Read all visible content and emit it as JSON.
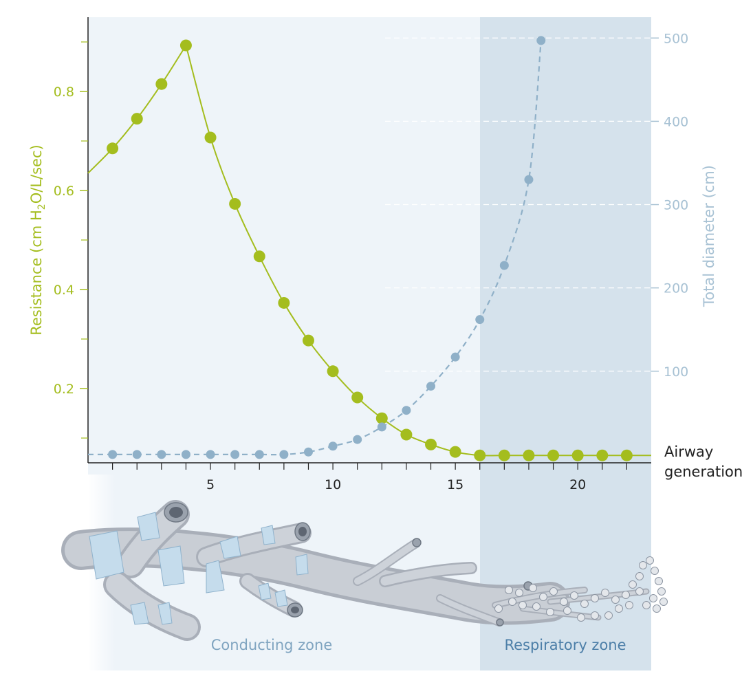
{
  "chart_data": {
    "type": "line",
    "xlabel": "Airway generation",
    "x_ticks": [
      "5",
      "10",
      "15",
      "20"
    ],
    "xlim": [
      0,
      23
    ],
    "left_axis": {
      "label_main": "Resistance (cm H",
      "label_sub": "2",
      "label_end": "O/L/sec)",
      "ticks": [
        "0.2",
        "0.4",
        "0.6",
        "0.8"
      ],
      "ylim": [
        0.05,
        0.95
      ],
      "color": "#a4bd1e"
    },
    "right_axis": {
      "label": "Total diameter (cm)",
      "ticks": [
        "100",
        "200",
        "300",
        "400",
        "500"
      ],
      "ylim": [
        -10,
        525
      ],
      "color": "#a8c2d4"
    },
    "series": [
      {
        "axis": "left",
        "color": "#a4bd1e",
        "style": "solid",
        "x": [
          1,
          2,
          3,
          4,
          5,
          6,
          7,
          8,
          9,
          10,
          11,
          12,
          13,
          14,
          15,
          16,
          17,
          18,
          19,
          20,
          21,
          22
        ],
        "y": [
          0.685,
          0.745,
          0.815,
          0.893,
          0.707,
          0.573,
          0.467,
          0.373,
          0.297,
          0.235,
          0.182,
          0.14,
          0.107,
          0.087,
          0.072,
          0.065,
          0.065,
          0.065,
          0.065,
          0.065,
          0.065,
          0.065
        ]
      },
      {
        "axis": "right",
        "color": "#8fb0c8",
        "style": "dashed",
        "x": [
          1,
          2,
          3,
          4,
          5,
          6,
          7,
          8,
          9,
          10,
          11,
          12,
          13,
          14,
          15,
          16,
          17,
          18,
          18.5
        ],
        "y": [
          0,
          0,
          0,
          0,
          0,
          0,
          0,
          0,
          3,
          10,
          18,
          33,
          53,
          82,
          117,
          162,
          227,
          330,
          497
        ]
      }
    ],
    "zones": [
      {
        "label": "Conducting zone",
        "x_range": [
          0,
          16
        ]
      },
      {
        "label": "Respiratory zone",
        "x_range": [
          16,
          23
        ]
      }
    ]
  }
}
